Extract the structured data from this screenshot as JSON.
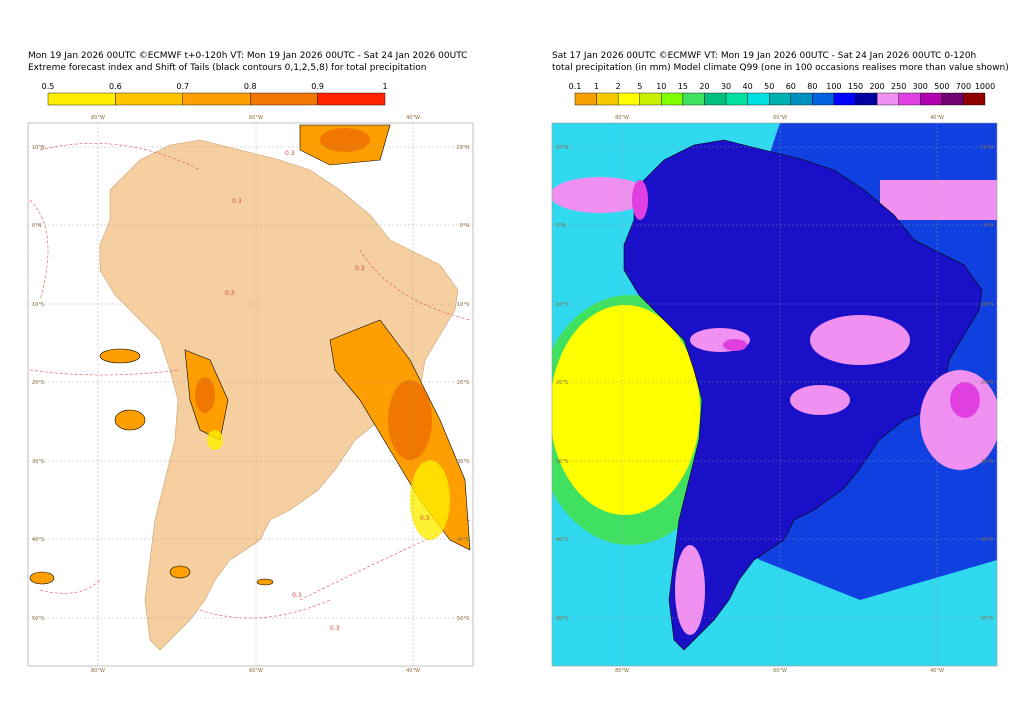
{
  "left": {
    "title_lines": [
      "Mon 19 Jan 2026 00UTC ©ECMWF t+0-120h  VT: Mon 19 Jan 2026 00UTC - Sat 24 Jan 2026 00UTC",
      "Extreme forecast index and Shift of Tails (black contours 0,1,2,5,8) for total precipitation"
    ],
    "colorbar": {
      "labels": [
        0.5,
        0.6,
        0.7,
        0.8,
        0.9,
        1
      ],
      "colors": [
        "#ffee00",
        "#ffc400",
        "#ff9e00",
        "#f07800",
        "#ff2200"
      ]
    },
    "contour_label": "0.3"
  },
  "right": {
    "title_lines": [
      "Sat 17 Jan 2026 00UTC ©ECMWF VT: Mon 19 Jan 2026 00UTC - Sat 24 Jan 2026 00UTC   0-120h",
      "total precipitation (in mm)  Model climate Q99 (one in 100 occasions realises more than value shown)"
    ],
    "colorbar": {
      "labels": [
        0.1,
        1,
        2,
        5,
        10,
        15,
        20,
        30,
        40,
        50,
        60,
        80,
        100,
        150,
        200,
        250,
        300,
        500,
        700,
        1000
      ],
      "colors": [
        "#f5a000",
        "#f5c800",
        "#ffff00",
        "#c8f000",
        "#80ff00",
        "#40e060",
        "#00c080",
        "#00e0a0",
        "#00e0e0",
        "#00b0b0",
        "#0090c0",
        "#0060e0",
        "#0000ff",
        "#0000a0",
        "#f090f0",
        "#e040e0",
        "#b000b0",
        "#700070",
        "#900000"
      ]
    }
  },
  "map_labels": {
    "lat": [
      "10°N",
      "0°N",
      "10°S",
      "20°S",
      "30°S",
      "40°S",
      "50°S"
    ],
    "lon": [
      "80°W",
      "60°W",
      "40°W"
    ]
  }
}
